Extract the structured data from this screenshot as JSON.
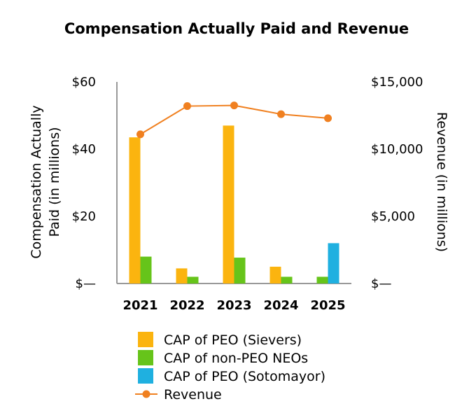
{
  "colors": {
    "peo_sievers": "#fbb40f",
    "non_peo": "#66c41a",
    "peo_sotomayor": "#1fb0e0",
    "revenue": "#f08020",
    "axis": "#999999"
  },
  "chart_data": {
    "type": "bar",
    "title": "Compensation Actually Paid and Revenue",
    "categories": [
      "2021",
      "2022",
      "2023",
      "2024",
      "2025"
    ],
    "ylabel": "Compensation Actually Paid (in millions)",
    "ylabel_lines": [
      "Compensation Actually",
      "Paid (in millions)"
    ],
    "y2label": "Revenue (in millions)",
    "ylim": [
      0,
      60
    ],
    "y2lim": [
      0,
      15000
    ],
    "yticks": [
      {
        "value": 0,
        "label": "$—"
      },
      {
        "value": 20,
        "label": "$20"
      },
      {
        "value": 40,
        "label": "$40"
      },
      {
        "value": 60,
        "label": "$60"
      }
    ],
    "y2ticks": [
      {
        "value": 0,
        "label": "$—"
      },
      {
        "value": 5000,
        "label": "$5,000"
      },
      {
        "value": 10000,
        "label": "$10,000"
      },
      {
        "value": 15000,
        "label": "$15,000"
      }
    ],
    "series": [
      {
        "name": "CAP of PEO (Sievers)",
        "kind": "bar",
        "color_key": "peo_sievers",
        "axis": "left",
        "values": [
          43.5,
          4.5,
          47,
          5,
          null
        ]
      },
      {
        "name": "CAP of non-PEO NEOs",
        "kind": "bar",
        "color_key": "non_peo",
        "axis": "left",
        "values": [
          8,
          2,
          7.7,
          2,
          2
        ]
      },
      {
        "name": "CAP of PEO (Sotomayor)",
        "kind": "bar",
        "color_key": "peo_sotomayor",
        "axis": "left",
        "values": [
          null,
          null,
          null,
          null,
          12
        ]
      },
      {
        "name": "Revenue",
        "kind": "line",
        "color_key": "revenue",
        "axis": "right",
        "values": [
          11100,
          13200,
          13250,
          12600,
          12300
        ]
      }
    ],
    "legend": {
      "position": "bottom"
    },
    "grid": false
  }
}
